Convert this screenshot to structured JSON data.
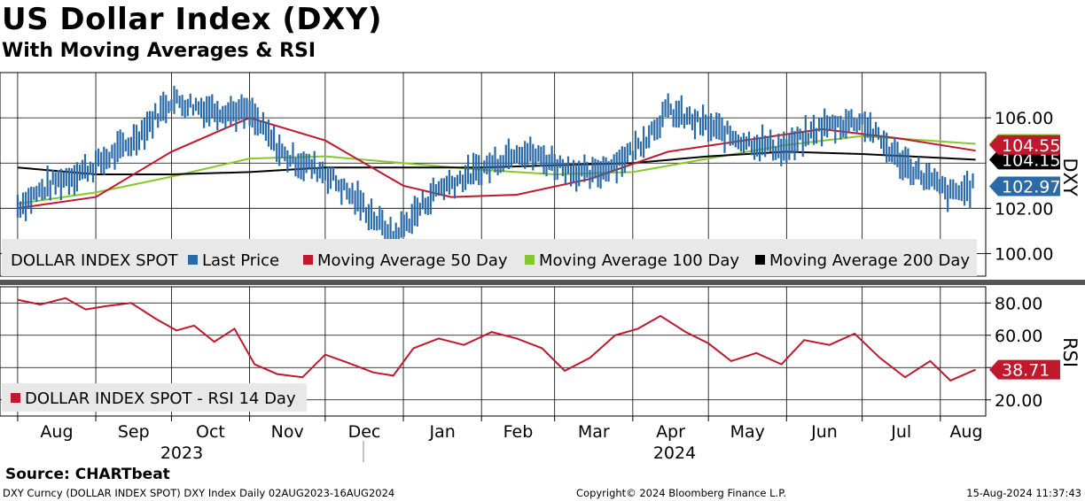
{
  "header": {
    "title": "US Dollar Index (DXY)",
    "subtitle": "With Moving Averages & RSI"
  },
  "footer": {
    "source": "Source:  CHARTbeat",
    "ticker_info": "DXY Curncy (DOLLAR INDEX SPOT) DXY Index  Daily 02AUG2023-16AUG2024",
    "copyright": "Copyright© 2024 Bloomberg Finance L.P.",
    "timestamp": "15-Aug-2024 11:37:43"
  },
  "colors": {
    "last_price": "#2b6aa8",
    "ma50": "#c0182d",
    "ma100": "#86c82a",
    "ma200": "#000000",
    "rsi": "#c0182d",
    "grid": "#000000",
    "legend_bg": "#e8e8e8"
  },
  "chart_data": [
    {
      "type": "line",
      "panel": "price",
      "y_axis_title": "DXY",
      "ylim": [
        99.0,
        108.0
      ],
      "yticks": [
        100.0,
        102.0,
        106.0
      ],
      "ytick_labels": [
        "100.00",
        "102.00",
        "106.00"
      ],
      "grid": true,
      "legend": {
        "placement": "bottom",
        "entries": [
          "DOLLAR INDEX SPOT",
          "Last Price",
          "Moving Average 50 Day",
          "Moving Average 100 Day",
          "Moving Average 200 Day"
        ]
      },
      "last_value_labels": [
        {
          "text": "104.55",
          "value": 104.55,
          "series": "ma50"
        },
        {
          "text": "104.15",
          "value": 104.15,
          "series": "ma200"
        },
        {
          "text": "102.97",
          "value": 102.97,
          "series": "last_price"
        }
      ],
      "ma100_last": 104.85,
      "x_months": [
        "Aug",
        "Sep",
        "Oct",
        "Nov",
        "Dec",
        "Jan",
        "Feb",
        "Mar",
        "Apr",
        "May",
        "Jun",
        "Jul",
        "Aug"
      ],
      "x_years": [
        "2023",
        "2024"
      ],
      "series": [
        {
          "key": "last_price",
          "name": "Last Price",
          "x": [
            "2023-08-01",
            "2023-08-15",
            "2023-09-01",
            "2023-09-15",
            "2023-10-01",
            "2023-10-15",
            "2023-11-01",
            "2023-11-15",
            "2023-12-01",
            "2023-12-15",
            "2023-12-28",
            "2024-01-15",
            "2024-02-01",
            "2024-02-15",
            "2024-03-01",
            "2024-03-15",
            "2024-04-01",
            "2024-04-15",
            "2024-05-01",
            "2024-05-15",
            "2024-06-01",
            "2024-06-15",
            "2024-07-01",
            "2024-07-15",
            "2024-08-05",
            "2024-08-15"
          ],
          "values": [
            102.1,
            103.1,
            103.9,
            104.9,
            106.8,
            106.4,
            106.2,
            104.3,
            103.6,
            102.2,
            100.7,
            102.9,
            103.7,
            104.6,
            104.0,
            103.4,
            104.5,
            106.3,
            105.6,
            105.0,
            104.6,
            105.6,
            105.9,
            104.2,
            102.6,
            102.97
          ]
        },
        {
          "key": "ma50",
          "name": "Moving Average 50 Day",
          "x": [
            "2023-08-01",
            "2023-09-01",
            "2023-10-01",
            "2023-11-01",
            "2023-12-01",
            "2024-01-01",
            "2024-01-20",
            "2024-02-15",
            "2024-03-15",
            "2024-04-15",
            "2024-05-15",
            "2024-06-15",
            "2024-07-15",
            "2024-08-15"
          ],
          "values": [
            102.0,
            102.5,
            104.5,
            106.0,
            105.0,
            103.0,
            102.5,
            102.6,
            103.3,
            104.5,
            105.0,
            105.5,
            105.1,
            104.55
          ]
        },
        {
          "key": "ma100",
          "name": "Moving Average 100 Day",
          "x": [
            "2023-08-01",
            "2023-09-01",
            "2023-10-01",
            "2023-11-01",
            "2023-12-01",
            "2024-01-01",
            "2024-02-01",
            "2024-03-01",
            "2024-04-01",
            "2024-05-01",
            "2024-06-01",
            "2024-07-01",
            "2024-08-15"
          ],
          "values": [
            102.2,
            102.7,
            103.4,
            104.2,
            104.3,
            104.0,
            103.7,
            103.5,
            103.6,
            104.2,
            104.8,
            105.2,
            104.85
          ]
        },
        {
          "key": "ma200",
          "name": "Moving Average 200 Day",
          "x": [
            "2023-08-01",
            "2023-09-01",
            "2023-10-01",
            "2023-11-01",
            "2023-12-01",
            "2024-01-01",
            "2024-02-01",
            "2024-03-01",
            "2024-04-01",
            "2024-05-01",
            "2024-06-01",
            "2024-07-01",
            "2024-08-15"
          ],
          "values": [
            103.8,
            103.5,
            103.5,
            103.6,
            103.8,
            103.8,
            103.8,
            103.9,
            104.0,
            104.3,
            104.5,
            104.4,
            104.15
          ]
        }
      ]
    },
    {
      "type": "line",
      "panel": "rsi",
      "y_axis_title": "RSI",
      "ylim": [
        10,
        90
      ],
      "yticks": [
        20,
        40,
        60,
        80
      ],
      "ytick_labels": [
        "20.00",
        "",
        "60.00",
        "80.00"
      ],
      "grid": true,
      "legend": {
        "placement": "bottom-left",
        "entries": [
          "DOLLAR INDEX SPOT - RSI 14 Day"
        ]
      },
      "last_value_labels": [
        {
          "text": "38.71",
          "value": 38.71,
          "series": "rsi"
        }
      ],
      "series": [
        {
          "key": "rsi",
          "name": "RSI 14 Day",
          "x": [
            "2023-08-01",
            "2023-08-10",
            "2023-08-20",
            "2023-08-28",
            "2023-09-05",
            "2023-09-15",
            "2023-09-25",
            "2023-10-03",
            "2023-10-10",
            "2023-10-18",
            "2023-10-26",
            "2023-11-03",
            "2023-11-12",
            "2023-11-22",
            "2023-12-01",
            "2023-12-10",
            "2023-12-20",
            "2023-12-28",
            "2024-01-05",
            "2024-01-15",
            "2024-01-25",
            "2024-02-05",
            "2024-02-15",
            "2024-02-25",
            "2024-03-05",
            "2024-03-15",
            "2024-03-25",
            "2024-04-03",
            "2024-04-12",
            "2024-04-22",
            "2024-05-01",
            "2024-05-10",
            "2024-05-20",
            "2024-05-30",
            "2024-06-08",
            "2024-06-18",
            "2024-06-28",
            "2024-07-08",
            "2024-07-18",
            "2024-07-28",
            "2024-08-05",
            "2024-08-15"
          ],
          "values": [
            82,
            79,
            83,
            76,
            78,
            80,
            70,
            63,
            66,
            56,
            64,
            42,
            36,
            34,
            48,
            43,
            37,
            35,
            52,
            58,
            54,
            62,
            58,
            52,
            38,
            46,
            60,
            64,
            72,
            62,
            55,
            44,
            49,
            42,
            57,
            54,
            61,
            46,
            34,
            44,
            32,
            38.71
          ]
        }
      ]
    }
  ]
}
